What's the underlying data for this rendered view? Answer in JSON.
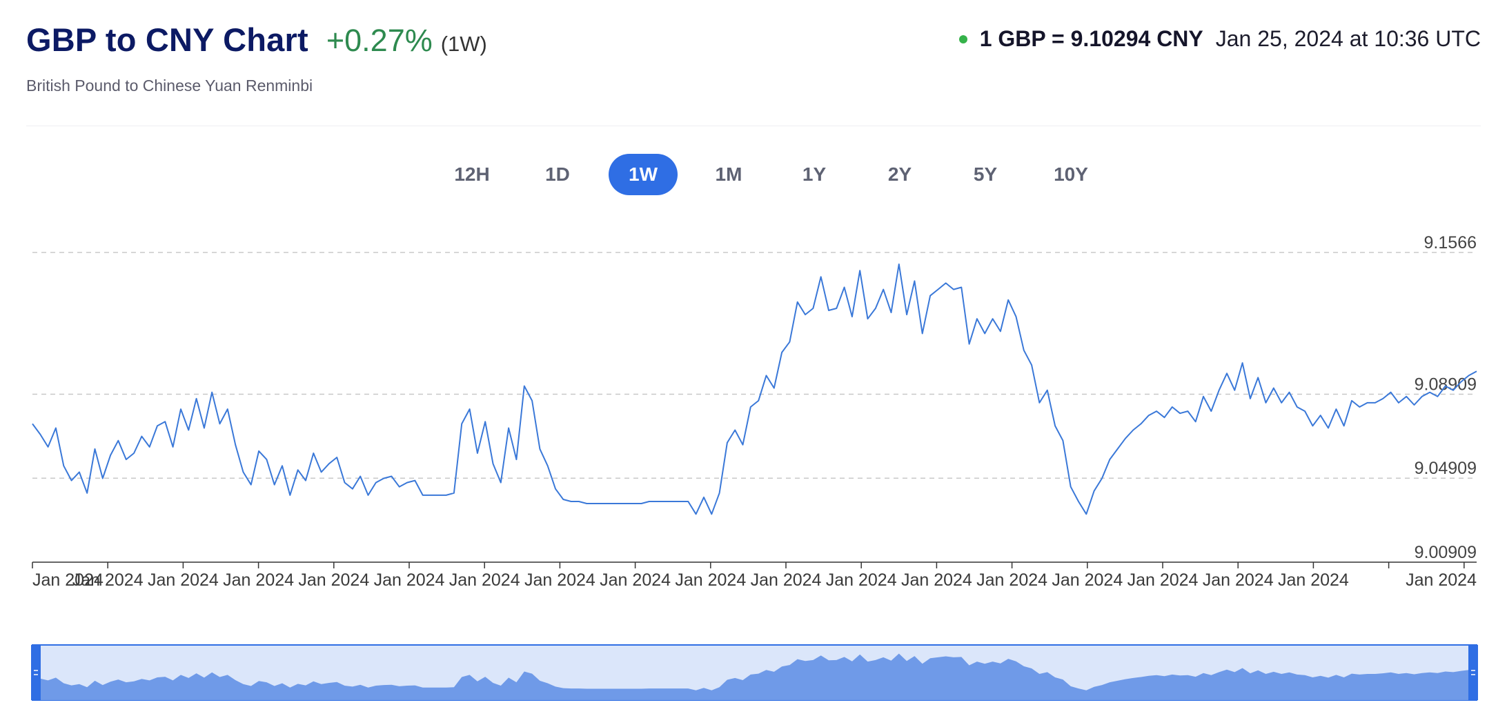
{
  "header": {
    "title": "GBP to CNY Chart",
    "change": "+0.27%",
    "period": "(1W)",
    "subtitle": "British Pound to Chinese Yuan Renminbi",
    "rate": "1 GBP = 9.10294 CNY",
    "timestamp": "Jan 25, 2024 at 10:36 UTC"
  },
  "periods": [
    "12H",
    "1D",
    "1W",
    "1M",
    "1Y",
    "2Y",
    "5Y",
    "10Y"
  ],
  "active_period": "1W",
  "colors": {
    "line": "#3a78d8",
    "navigator_fill": "#6f9ae8",
    "navigator_bg": "#dbe6fa",
    "active_tab": "#2f6ee4"
  },
  "chart_data": {
    "type": "line",
    "title": "",
    "xlabel": "",
    "ylabel": "",
    "ylim": [
      9.00909,
      9.1566
    ],
    "yticks": [
      "9.1566",
      "9.08909",
      "9.04909",
      "9.00909"
    ],
    "x_tick_labels": [
      "Jan 2024",
      "Jan 2024",
      "Jan 2024",
      "Jan 2024",
      "Jan 2024",
      "Jan 2024",
      "Jan 2024",
      "Jan 2024",
      "Jan 2024",
      "Jan 2024",
      "Jan 2024",
      "Jan 2024",
      "Jan 2024",
      "Jan 2024",
      "Jan 2024",
      "Jan 2024",
      "Jan 2024",
      "Jan 2024",
      "Jan 2024",
      "Jan 2024"
    ],
    "grid": "horizontal dashed",
    "series": [
      {
        "values": [
          9.075,
          9.07,
          9.064,
          9.073,
          9.055,
          9.048,
          9.052,
          9.042,
          9.063,
          9.049,
          9.06,
          9.067,
          9.058,
          9.061,
          9.069,
          9.064,
          9.074,
          9.076,
          9.064,
          9.082,
          9.072,
          9.087,
          9.073,
          9.09,
          9.075,
          9.082,
          9.065,
          9.052,
          9.046,
          9.062,
          9.058,
          9.046,
          9.055,
          9.041,
          9.053,
          9.048,
          9.061,
          9.052,
          9.056,
          9.059,
          9.047,
          9.044,
          9.05,
          9.041,
          9.047,
          9.049,
          9.05,
          9.045,
          9.047,
          9.048,
          9.041,
          9.041,
          9.041,
          9.041,
          9.042,
          9.075,
          9.082,
          9.061,
          9.076,
          9.056,
          9.047,
          9.073,
          9.058,
          9.093,
          9.086,
          9.063,
          9.055,
          9.044,
          9.039,
          9.038,
          9.038,
          9.037,
          9.037,
          9.037,
          9.037,
          9.037,
          9.037,
          9.037,
          9.037,
          9.038,
          9.038,
          9.038,
          9.038,
          9.038,
          9.038,
          9.032,
          9.04,
          9.032,
          9.042,
          9.066,
          9.072,
          9.065,
          9.083,
          9.086,
          9.098,
          9.092,
          9.109,
          9.114,
          9.133,
          9.127,
          9.13,
          9.145,
          9.129,
          9.13,
          9.14,
          9.126,
          9.148,
          9.125,
          9.13,
          9.139,
          9.128,
          9.151,
          9.127,
          9.143,
          9.118,
          9.136,
          9.139,
          9.142,
          9.139,
          9.14,
          9.113,
          9.125,
          9.118,
          9.125,
          9.119,
          9.134,
          9.126,
          9.11,
          9.103,
          9.085,
          9.091,
          9.074,
          9.067,
          9.045,
          9.038,
          9.032,
          9.043,
          9.049,
          9.058,
          9.063,
          9.068,
          9.072,
          9.075,
          9.079,
          9.081,
          9.078,
          9.083,
          9.08,
          9.081,
          9.076,
          9.088,
          9.081,
          9.091,
          9.099,
          9.091,
          9.104,
          9.087,
          9.097,
          9.085,
          9.092,
          9.085,
          9.09,
          9.083,
          9.081,
          9.074,
          9.079,
          9.073,
          9.082,
          9.074,
          9.086,
          9.083,
          9.085,
          9.085,
          9.087,
          9.09,
          9.085,
          9.088,
          9.084,
          9.088,
          9.09,
          9.088,
          9.093,
          9.091,
          9.095,
          9.098,
          9.1
        ]
      }
    ]
  }
}
